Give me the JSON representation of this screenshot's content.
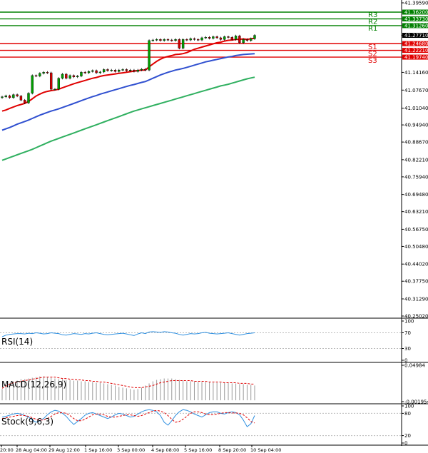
{
  "main_panel": {
    "price_axis_labels": [
      "41.39590",
      "41.36200",
      "41.33730",
      "41.31260",
      "41.27710",
      "41.24680",
      "41.22210",
      "41.19740",
      "41.14160",
      "41.07670",
      "41.01040",
      "40.94940",
      "40.88670",
      "40.82210",
      "40.75940",
      "40.69480",
      "40.63210",
      "40.56750",
      "40.50480",
      "40.44020",
      "40.37750",
      "40.31290",
      "40.25020"
    ],
    "current_price": "41.27710",
    "pivot_levels": [
      {
        "label": "R3",
        "value": "41.36200",
        "color": "#008000"
      },
      {
        "label": "R2",
        "value": "41.33730",
        "color": "#008000"
      },
      {
        "label": "R1",
        "value": "41.31260",
        "color": "#008000"
      },
      {
        "label": "S1",
        "value": "41.24680",
        "color": "#e00000"
      },
      {
        "label": "S2",
        "value": "41.22210",
        "color": "#e00000"
      },
      {
        "label": "S3",
        "value": "41.19740",
        "color": "#e00000"
      }
    ]
  },
  "rsi_panel": {
    "label": "RSI(14)",
    "axis_labels": [
      "100",
      "70",
      "30",
      "0"
    ]
  },
  "macd_panel": {
    "label": "MACD(12,26,9)",
    "axis_labels": [
      "0.04984",
      "-0.001954"
    ]
  },
  "stoch_panel": {
    "label": "Stock(9,6,3)",
    "axis_labels": [
      "100",
      "80",
      "20",
      "0"
    ]
  },
  "time_axis_labels": [
    "20:00",
    "28 Aug 04:00",
    "29 Aug 12:00",
    "1 Sep 16:00",
    "3 Sep 00:00",
    "4 Sep 08:00",
    "5 Sep 16:00",
    "8 Sep 20:00",
    "10 Sep 04:00"
  ],
  "colors": {
    "candle_bull": "#00a000",
    "candle_bear": "#d00000",
    "ma_fast": "#e00000",
    "ma_mid": "#3050d0",
    "ma_slow": "#30b060",
    "rsi_line": "#3090e0",
    "macd_signal": "#e00000",
    "stoch_k": "#3090e0",
    "stoch_d": "#e00000"
  },
  "chart_data": [
    {
      "type": "candlestick",
      "panel": "price",
      "ylim": [
        40.2502,
        41.3959
      ],
      "x_labels": [
        "20:00",
        "28 Aug 04:00",
        "29 Aug 12:00",
        "1 Sep 16:00",
        "3 Sep 00:00",
        "4 Sep 08:00",
        "5 Sep 16:00",
        "8 Sep 20:00",
        "10 Sep 04:00"
      ],
      "close": [
        41.052,
        41.056,
        41.049,
        41.06,
        41.055,
        41.04,
        41.03,
        41.065,
        41.13,
        41.128,
        41.138,
        41.142,
        41.14,
        41.08,
        41.08,
        41.12,
        41.135,
        41.12,
        41.13,
        41.125,
        41.128,
        41.142,
        41.14,
        41.145,
        41.148,
        41.14,
        41.143,
        41.152,
        41.148,
        41.15,
        41.145,
        41.15,
        41.152,
        41.148,
        41.15,
        41.145,
        41.15,
        41.153,
        41.15,
        41.258,
        41.26,
        41.262,
        41.258,
        41.262,
        41.26,
        41.258,
        41.262,
        41.23,
        41.262,
        41.26,
        41.265,
        41.262,
        41.26,
        41.268,
        41.27,
        41.266,
        41.272,
        41.268,
        41.262,
        41.272,
        41.27,
        41.262,
        41.275,
        41.25,
        41.262,
        41.258,
        41.265,
        41.277
      ],
      "series": [
        {
          "name": "",
          "values": [
            41.0,
            41.004,
            41.01,
            41.015,
            41.02,
            41.024,
            41.028,
            41.035,
            41.045,
            41.055,
            41.062,
            41.068,
            41.072,
            41.075,
            41.077,
            41.08,
            41.085,
            41.09,
            41.095,
            41.1,
            41.104,
            41.108,
            41.112,
            41.116,
            41.12,
            41.123,
            41.127,
            41.13,
            41.132,
            41.134,
            41.136,
            41.138,
            41.14,
            41.142,
            41.144,
            41.146,
            41.148,
            41.15,
            41.15,
            41.162,
            41.172,
            41.182,
            41.19,
            41.196,
            41.2,
            41.203,
            41.207,
            41.208,
            41.21,
            41.214,
            41.22,
            41.226,
            41.23,
            41.234,
            41.238,
            41.242,
            41.246,
            41.25,
            41.252,
            41.256,
            41.259,
            41.26,
            41.262,
            41.262,
            41.264,
            41.262,
            41.265,
            41.266
          ]
        },
        {
          "name": "",
          "values": [
            40.93,
            40.935,
            40.94,
            40.946,
            40.952,
            40.957,
            40.962,
            40.967,
            40.973,
            40.979,
            40.985,
            40.99,
            40.995,
            41.0,
            41.004,
            41.008,
            41.013,
            41.018,
            41.023,
            41.028,
            41.033,
            41.038,
            41.043,
            41.048,
            41.053,
            41.057,
            41.062,
            41.066,
            41.07,
            41.074,
            41.078,
            41.082,
            41.086,
            41.09,
            41.094,
            41.097,
            41.101,
            41.105,
            41.108,
            41.114,
            41.12,
            41.126,
            41.132,
            41.137,
            41.142,
            41.146,
            41.15,
            41.153,
            41.156,
            41.16,
            41.164,
            41.168,
            41.172,
            41.176,
            41.18,
            41.183,
            41.186,
            41.189,
            41.192,
            41.195,
            41.198,
            41.2,
            41.203,
            41.205,
            41.207,
            41.208,
            41.209,
            41.21
          ]
        },
        {
          "name": "",
          "values": [
            40.82,
            40.825,
            40.83,
            40.835,
            40.84,
            40.845,
            40.85,
            40.855,
            40.86,
            40.866,
            40.872,
            40.878,
            40.884,
            40.89,
            40.895,
            40.9,
            40.905,
            40.91,
            40.915,
            40.92,
            40.925,
            40.93,
            40.935,
            40.94,
            40.945,
            40.95,
            40.955,
            40.96,
            40.965,
            40.97,
            40.975,
            40.98,
            40.985,
            40.99,
            40.995,
            41.0,
            41.004,
            41.008,
            41.012,
            41.016,
            41.02,
            41.024,
            41.028,
            41.032,
            41.036,
            41.04,
            41.044,
            41.048,
            41.052,
            41.056,
            41.06,
            41.064,
            41.068,
            41.072,
            41.076,
            41.08,
            41.084,
            41.088,
            41.092,
            41.095,
            41.098,
            41.102,
            41.106,
            41.11,
            41.114,
            41.118,
            41.121,
            41.124
          ]
        }
      ],
      "horizontal_lines": [
        41.362,
        41.3373,
        41.3126,
        41.2468,
        41.2221,
        41.1974
      ]
    },
    {
      "type": "line",
      "panel": "RSI(14)",
      "ylim": [
        0,
        100
      ],
      "series": [
        {
          "name": "RSI(14)",
          "values": [
            60,
            64,
            66,
            67,
            68,
            68,
            67,
            69,
            68,
            70,
            69,
            67,
            68,
            70,
            69,
            68,
            65,
            64,
            66,
            68,
            67,
            66,
            68,
            67,
            69,
            70,
            68,
            66,
            65,
            66,
            67,
            68,
            69,
            67,
            65,
            63,
            67,
            70,
            68,
            72,
            73,
            72,
            71,
            73,
            72,
            70,
            69,
            66,
            64,
            66,
            68,
            67,
            68,
            70,
            71,
            69,
            68,
            67,
            68,
            69,
            70,
            68,
            66,
            64,
            66,
            68,
            69,
            70
          ]
        }
      ]
    },
    {
      "type": "bar",
      "panel": "MACD(12,26,9)",
      "ylim": [
        -0.001954,
        0.04984
      ],
      "values": [
        0.016,
        0.02,
        0.024,
        0.027,
        0.028,
        0.03,
        0.03,
        0.031,
        0.032,
        0.033,
        0.034,
        0.034,
        0.033,
        0.032,
        0.031,
        0.03,
        0.03,
        0.029,
        0.029,
        0.028,
        0.028,
        0.027,
        0.027,
        0.026,
        0.026,
        0.025,
        0.025,
        0.024,
        0.023,
        0.022,
        0.021,
        0.019,
        0.018,
        0.017,
        0.016,
        0.015,
        0.016,
        0.018,
        0.021,
        0.024,
        0.027,
        0.029,
        0.03,
        0.031,
        0.031,
        0.031,
        0.03,
        0.029,
        0.028,
        0.027,
        0.027,
        0.027,
        0.026,
        0.026,
        0.026,
        0.026,
        0.025,
        0.025,
        0.025,
        0.025,
        0.025,
        0.024,
        0.024,
        0.023,
        0.023,
        0.022,
        0.022,
        0.021
      ],
      "series": [
        {
          "name": "",
          "values": [
            0.017,
            0.02,
            0.023,
            0.025,
            0.026,
            0.027,
            0.028,
            0.029,
            0.03,
            0.031,
            0.032,
            0.033,
            0.033,
            0.033,
            0.033,
            0.032,
            0.031,
            0.031,
            0.03,
            0.03,
            0.029,
            0.029,
            0.028,
            0.028,
            0.027,
            0.027,
            0.026,
            0.026,
            0.025,
            0.024,
            0.023,
            0.022,
            0.021,
            0.02,
            0.019,
            0.018,
            0.018,
            0.018,
            0.019,
            0.02,
            0.021,
            0.023,
            0.025,
            0.026,
            0.027,
            0.028,
            0.028,
            0.028,
            0.028,
            0.028,
            0.028,
            0.027,
            0.027,
            0.027,
            0.027,
            0.026,
            0.026,
            0.026,
            0.026,
            0.025,
            0.025,
            0.025,
            0.025,
            0.024,
            0.024,
            0.024,
            0.023,
            0.023
          ]
        }
      ]
    },
    {
      "type": "line",
      "panel": "Stock(9,6,3)",
      "ylim": [
        0,
        100
      ],
      "series": [
        {
          "name": "",
          "values": [
            70,
            72,
            75,
            78,
            80,
            78,
            74,
            70,
            62,
            56,
            60,
            66,
            76,
            84,
            88,
            86,
            80,
            72,
            60,
            50,
            58,
            66,
            75,
            80,
            82,
            78,
            74,
            70,
            66,
            70,
            76,
            80,
            78,
            74,
            70,
            72,
            78,
            84,
            88,
            90,
            88,
            84,
            74,
            56,
            48,
            60,
            74,
            84,
            90,
            88,
            84,
            78,
            74,
            70,
            76,
            82,
            84,
            84,
            80,
            78,
            82,
            84,
            82,
            76,
            62,
            44,
            52,
            74
          ]
        },
        {
          "name": "",
          "values": [
            66,
            68,
            70,
            72,
            74,
            75,
            74,
            72,
            68,
            64,
            62,
            62,
            66,
            72,
            78,
            82,
            82,
            80,
            74,
            66,
            60,
            60,
            64,
            70,
            76,
            78,
            78,
            76,
            72,
            70,
            70,
            72,
            74,
            76,
            76,
            74,
            72,
            74,
            78,
            82,
            86,
            88,
            86,
            82,
            74,
            64,
            56,
            58,
            64,
            72,
            80,
            84,
            84,
            82,
            78,
            76,
            76,
            78,
            80,
            82,
            82,
            81,
            81,
            80,
            76,
            68,
            58,
            54
          ]
        }
      ]
    }
  ]
}
